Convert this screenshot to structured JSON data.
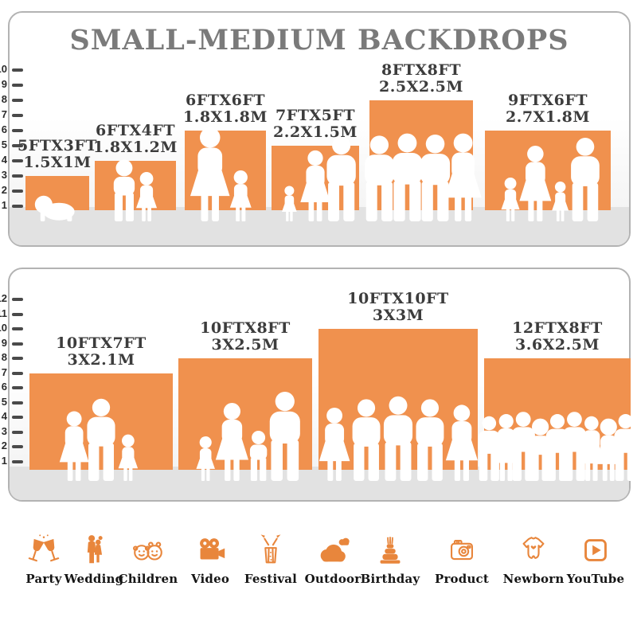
{
  "title": "SMALL-MEDIUM BACKDROPS",
  "colors": {
    "bar_orange": "#F0914E",
    "icon_orange": "#E8863C",
    "title_gray": "#7A7A7A",
    "label_dark": "#3C3C3C",
    "floor_gray": "#E2E2E2",
    "tick_dark": "#4A4A4A"
  },
  "chart_data": [
    {
      "type": "bar",
      "title": "SMALL-MEDIUM BACKDROPS",
      "unit": "ft",
      "ylim": [
        0,
        10
      ],
      "yticks": [
        1,
        2,
        3,
        4,
        5,
        6,
        7,
        8,
        9,
        10
      ],
      "grid": false,
      "legend": "none",
      "bars": [
        {
          "label": [
            "5FTX3FT",
            "1.5X1M"
          ],
          "width_ft": 5,
          "height_ft": 3,
          "people": [
            [
              "baby",
              0.95
            ]
          ]
        },
        {
          "label": [
            "6FTX4FT",
            "1.8X1.2M"
          ],
          "width_ft": 6,
          "height_ft": 4,
          "people": [
            [
              "boy",
              1.25
            ],
            [
              "girl",
              1.0
            ]
          ]
        },
        {
          "label": [
            "6FTX6FT",
            "1.8X1.8M"
          ],
          "width_ft": 6,
          "height_ft": 6,
          "people": [
            [
              "woman",
              1.18
            ],
            [
              "girl",
              0.64
            ]
          ]
        },
        {
          "label": [
            "7FTX5FT",
            "2.2X1.5M"
          ],
          "width_ft": 7,
          "height_ft": 5,
          "people": [
            [
              "girl",
              0.55
            ],
            [
              "woman",
              1.1
            ],
            [
              "man",
              1.32
            ]
          ]
        },
        {
          "label": [
            "8FTX8FT",
            "2.5X2.5M"
          ],
          "width_ft": 8,
          "height_ft": 8,
          "people": [
            [
              "man",
              0.78
            ],
            [
              "man",
              0.8
            ],
            [
              "man",
              0.79
            ],
            [
              "woman",
              0.8
            ]
          ]
        },
        {
          "label": [
            "9FTX6FT",
            "2.7X1.8M"
          ],
          "width_ft": 9,
          "height_ft": 6,
          "people": [
            [
              "girl",
              0.55
            ],
            [
              "woman",
              0.95
            ],
            [
              "girl",
              0.5
            ],
            [
              "man",
              1.05
            ]
          ]
        }
      ]
    },
    {
      "type": "bar",
      "title": "",
      "unit": "ft",
      "ylim": [
        0,
        12
      ],
      "yticks": [
        1,
        2,
        3,
        4,
        5,
        6,
        7,
        8,
        9,
        10,
        11,
        12
      ],
      "grid": false,
      "legend": "none",
      "bars": [
        {
          "label": [
            "10FTX7FT",
            "3X2.1M"
          ],
          "width_ft": 10,
          "height_ft": 7,
          "people": [
            [
              "woman",
              0.72
            ],
            [
              "man",
              0.85
            ],
            [
              "girl",
              0.48
            ]
          ]
        },
        {
          "label": [
            "10FTX8FT",
            "3X2.5M"
          ],
          "width_ft": 10,
          "height_ft": 8,
          "people": [
            [
              "girl",
              0.4
            ],
            [
              "woman",
              0.7
            ],
            [
              "boy",
              0.45
            ],
            [
              "man",
              0.8
            ]
          ]
        },
        {
          "label": [
            "10FTX10FT",
            "3X3M"
          ],
          "width_ft": 10,
          "height_ft": 10,
          "people": [
            [
              "woman",
              0.52
            ],
            [
              "man",
              0.58
            ],
            [
              "man",
              0.6
            ],
            [
              "man",
              0.58
            ],
            [
              "woman",
              0.54
            ]
          ]
        },
        {
          "label": [
            "12FTX8FT",
            "3.6X2.5M"
          ],
          "width_ft": 12,
          "height_ft": 8,
          "people": [
            [
              "man",
              0.58
            ],
            [
              "woman",
              0.6
            ],
            [
              "man",
              0.62
            ],
            [
              "boy",
              0.56
            ],
            [
              "man",
              0.6
            ],
            [
              "man",
              0.62
            ],
            [
              "woman",
              0.58
            ],
            [
              "girl",
              0.56
            ],
            [
              "man",
              0.6
            ]
          ]
        }
      ]
    }
  ],
  "categories": [
    {
      "label": "Party",
      "icon": "party-icon"
    },
    {
      "label": "Wedding",
      "icon": "wedding-icon"
    },
    {
      "label": "Children",
      "icon": "children-icon"
    },
    {
      "label": "Video",
      "icon": "video-icon"
    },
    {
      "label": "Festival",
      "icon": "festival-icon"
    },
    {
      "label": "Outdoor",
      "icon": "outdoor-icon"
    },
    {
      "label": "Birthday",
      "icon": "birthday-icon"
    },
    {
      "label": "Product",
      "icon": "product-icon"
    },
    {
      "label": "Newborn",
      "icon": "newborn-icon"
    },
    {
      "label": "YouTube",
      "icon": "youtube-icon"
    }
  ]
}
